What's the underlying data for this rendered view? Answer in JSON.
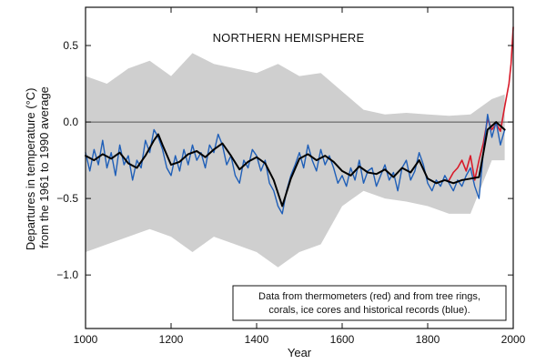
{
  "chart_data": {
    "type": "line",
    "title": "NORTHERN HEMISPHERE",
    "xlabel": "Year",
    "ylabel": "Departures in temperature (°C) from the 1961 to 1990 average",
    "ylabel_lines": [
      "Departures in temperature (°C)",
      "from the 1961 to 1990 average"
    ],
    "xlim": [
      1000,
      2000
    ],
    "ylim": [
      -1.35,
      0.75
    ],
    "x_ticks": [
      1000,
      1200,
      1400,
      1600,
      1800,
      2000
    ],
    "y_ticks": [
      0.5,
      0.0,
      -0.5,
      -1.0
    ],
    "y_tick_labels": [
      "0.5",
      "0.0",
      "−0.5",
      "−1.0"
    ],
    "grid": false,
    "zero_line": true,
    "annotation": [
      "Data from thermometers (red) and from tree rings,",
      "corals, ice cores and historical records (blue)."
    ],
    "colors": {
      "uncertainty": "#cfcfcf",
      "proxy": "#1f5fb8",
      "thermometer": "#d81b2a",
      "smoothed": "#000000",
      "zero_line": "#555555"
    },
    "series": [
      {
        "name": "thermometer",
        "x": [
          1850,
          1860,
          1870,
          1880,
          1890,
          1900,
          1910,
          1920,
          1930,
          1940,
          1950,
          1960,
          1970,
          1980,
          1990,
          1995,
          2000
        ],
        "values": [
          -0.38,
          -0.33,
          -0.3,
          -0.25,
          -0.32,
          -0.22,
          -0.38,
          -0.25,
          -0.14,
          0.02,
          -0.05,
          -0.01,
          -0.06,
          0.1,
          0.25,
          0.38,
          0.62
        ]
      },
      {
        "name": "smoothed",
        "x": [
          1000,
          1020,
          1040,
          1060,
          1080,
          1100,
          1120,
          1140,
          1160,
          1170,
          1180,
          1200,
          1220,
          1240,
          1260,
          1280,
          1300,
          1320,
          1340,
          1360,
          1380,
          1400,
          1420,
          1440,
          1460,
          1480,
          1500,
          1520,
          1540,
          1560,
          1580,
          1600,
          1620,
          1640,
          1660,
          1680,
          1700,
          1720,
          1740,
          1760,
          1780,
          1800,
          1820,
          1840,
          1860,
          1880,
          1900,
          1920,
          1940,
          1960,
          1980
        ],
        "values": [
          -0.22,
          -0.25,
          -0.21,
          -0.24,
          -0.2,
          -0.27,
          -0.3,
          -0.22,
          -0.12,
          -0.08,
          -0.15,
          -0.28,
          -0.26,
          -0.21,
          -0.19,
          -0.23,
          -0.18,
          -0.14,
          -0.22,
          -0.31,
          -0.26,
          -0.23,
          -0.27,
          -0.38,
          -0.55,
          -0.37,
          -0.24,
          -0.21,
          -0.25,
          -0.22,
          -0.26,
          -0.32,
          -0.35,
          -0.29,
          -0.33,
          -0.34,
          -0.31,
          -0.36,
          -0.3,
          -0.33,
          -0.25,
          -0.37,
          -0.4,
          -0.38,
          -0.4,
          -0.38,
          -0.37,
          -0.36,
          -0.05,
          0.0,
          -0.05
        ]
      },
      {
        "name": "proxy",
        "x": [
          1000,
          1010,
          1020,
          1030,
          1040,
          1050,
          1060,
          1070,
          1080,
          1090,
          1100,
          1110,
          1120,
          1130,
          1140,
          1150,
          1160,
          1170,
          1180,
          1190,
          1200,
          1210,
          1220,
          1230,
          1240,
          1250,
          1260,
          1270,
          1280,
          1290,
          1300,
          1310,
          1320,
          1330,
          1340,
          1350,
          1360,
          1370,
          1380,
          1390,
          1400,
          1410,
          1420,
          1430,
          1440,
          1450,
          1460,
          1470,
          1480,
          1490,
          1500,
          1510,
          1520,
          1530,
          1540,
          1550,
          1560,
          1570,
          1580,
          1590,
          1600,
          1610,
          1620,
          1630,
          1640,
          1650,
          1660,
          1670,
          1680,
          1690,
          1700,
          1710,
          1720,
          1730,
          1740,
          1750,
          1760,
          1770,
          1780,
          1790,
          1800,
          1810,
          1820,
          1830,
          1840,
          1850,
          1860,
          1870,
          1880,
          1890,
          1900,
          1910,
          1920,
          1930,
          1940,
          1950,
          1960,
          1970,
          1980
        ],
        "values": [
          -0.2,
          -0.32,
          -0.18,
          -0.28,
          -0.12,
          -0.3,
          -0.2,
          -0.35,
          -0.15,
          -0.28,
          -0.22,
          -0.38,
          -0.25,
          -0.3,
          -0.12,
          -0.2,
          -0.05,
          -0.1,
          -0.18,
          -0.3,
          -0.35,
          -0.22,
          -0.32,
          -0.18,
          -0.28,
          -0.15,
          -0.25,
          -0.2,
          -0.3,
          -0.15,
          -0.2,
          -0.08,
          -0.15,
          -0.28,
          -0.22,
          -0.35,
          -0.4,
          -0.25,
          -0.3,
          -0.18,
          -0.22,
          -0.32,
          -0.25,
          -0.4,
          -0.45,
          -0.55,
          -0.6,
          -0.45,
          -0.35,
          -0.28,
          -0.2,
          -0.3,
          -0.15,
          -0.25,
          -0.32,
          -0.18,
          -0.28,
          -0.22,
          -0.3,
          -0.4,
          -0.35,
          -0.42,
          -0.3,
          -0.38,
          -0.25,
          -0.4,
          -0.32,
          -0.3,
          -0.42,
          -0.35,
          -0.28,
          -0.38,
          -0.33,
          -0.45,
          -0.3,
          -0.25,
          -0.38,
          -0.32,
          -0.2,
          -0.28,
          -0.4,
          -0.45,
          -0.38,
          -0.42,
          -0.35,
          -0.4,
          -0.45,
          -0.38,
          -0.42,
          -0.35,
          -0.3,
          -0.42,
          -0.5,
          -0.2,
          0.05,
          -0.1,
          0.0,
          -0.15,
          -0.05
        ]
      },
      {
        "name": "uncertainty",
        "x": [
          1000,
          1050,
          1100,
          1150,
          1200,
          1250,
          1300,
          1350,
          1400,
          1450,
          1500,
          1550,
          1600,
          1650,
          1700,
          1750,
          1800,
          1850,
          1900,
          1950,
          1980
        ],
        "upper": [
          0.3,
          0.25,
          0.35,
          0.4,
          0.3,
          0.45,
          0.38,
          0.35,
          0.32,
          0.38,
          0.3,
          0.32,
          0.2,
          0.08,
          0.05,
          0.06,
          0.05,
          0.04,
          0.05,
          0.15,
          0.18
        ],
        "lower": [
          -0.85,
          -0.8,
          -0.75,
          -0.7,
          -0.75,
          -0.85,
          -0.75,
          -0.8,
          -0.85,
          -0.95,
          -0.85,
          -0.8,
          -0.55,
          -0.45,
          -0.5,
          -0.52,
          -0.55,
          -0.6,
          -0.6,
          -0.25,
          -0.25
        ]
      }
    ]
  }
}
